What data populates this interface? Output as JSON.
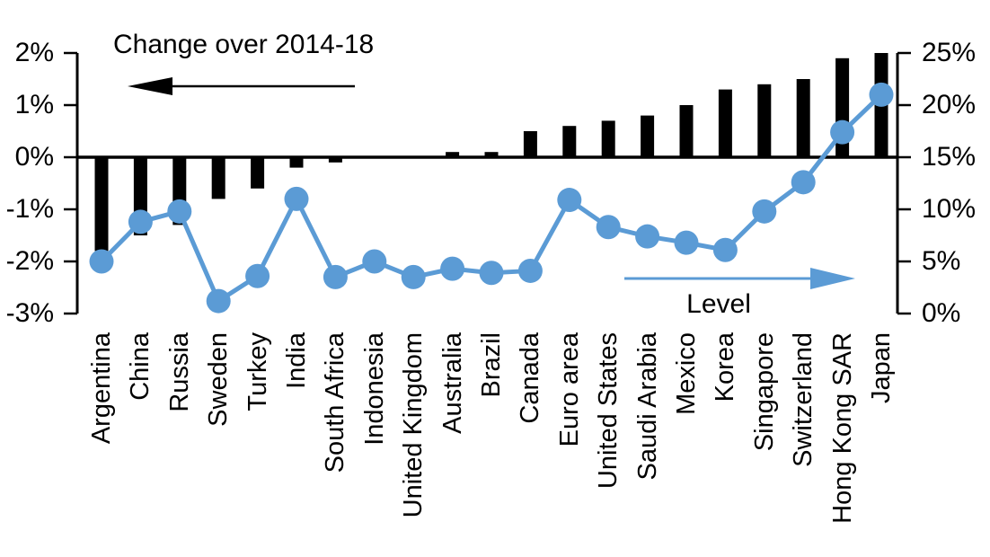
{
  "chart_data": {
    "type": "bar+line combo",
    "title": "",
    "categories": [
      "Argentina",
      "China",
      "Russia",
      "Sweden",
      "Turkey",
      "India",
      "South Africa",
      "Indonesia",
      "United Kingdom",
      "Australia",
      "Brazil",
      "Canada",
      "Euro area",
      "United States",
      "Saudi Arabia",
      "Mexico",
      "Korea",
      "Singapore",
      "Switzerland",
      "Hong Kong SAR",
      "Japan"
    ],
    "series": [
      {
        "name": "Change over 2014-18",
        "type": "bar",
        "axis": "left",
        "color": "#000000",
        "values": [
          -1.8,
          -1.5,
          -1.3,
          -0.8,
          -0.6,
          -0.2,
          -0.1,
          0.0,
          0.0,
          0.1,
          0.1,
          0.5,
          0.6,
          0.7,
          0.8,
          1.0,
          1.3,
          1.4,
          1.5,
          1.9,
          2.0
        ]
      },
      {
        "name": "Level",
        "type": "line",
        "axis": "right",
        "color": "#5B9BD5",
        "values": [
          5.0,
          8.8,
          9.8,
          1.2,
          3.6,
          11.0,
          3.5,
          5.0,
          3.5,
          4.3,
          3.9,
          4.1,
          10.9,
          8.3,
          7.4,
          6.8,
          6.1,
          9.8,
          12.6,
          17.4,
          21.0
        ]
      }
    ],
    "left_axis": {
      "min": -3,
      "max": 2,
      "step": 1,
      "unit": "%",
      "ticks": [
        "2%",
        "1%",
        "0%",
        "-1%",
        "-2%",
        "-3%"
      ],
      "tick_values": [
        2,
        1,
        0,
        -1,
        -2,
        -3
      ]
    },
    "right_axis": {
      "min": 0,
      "max": 25,
      "step": 5,
      "unit": "%",
      "ticks": [
        "25%",
        "20%",
        "15%",
        "10%",
        "5%",
        "0%"
      ],
      "tick_values": [
        25,
        20,
        15,
        10,
        5,
        0
      ]
    },
    "annotations": [
      {
        "text": "Change over 2014-18",
        "arrow_direction": "left",
        "arrow_color": "#000000"
      },
      {
        "text": "Level",
        "arrow_direction": "right",
        "arrow_color": "#5B9BD5"
      }
    ],
    "layout_hints": {
      "grid": false,
      "zero_baseline_shared": "0% left aligns with 15% right"
    }
  }
}
